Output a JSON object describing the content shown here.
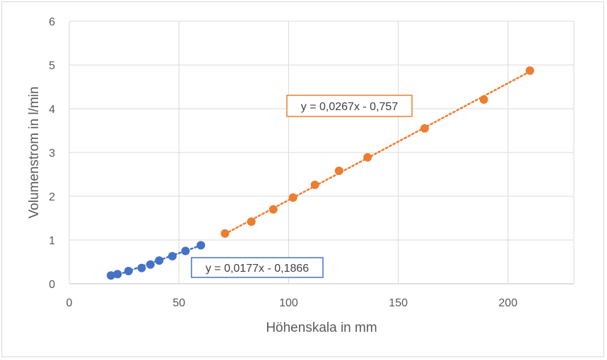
{
  "chart_data": {
    "type": "scatter",
    "title": "",
    "xlabel": "Höhenskala in mm",
    "ylabel": "Volumenstrom in l/min",
    "xlim": [
      0,
      230
    ],
    "ylim": [
      0,
      6
    ],
    "xticks": [
      0,
      50,
      100,
      150,
      200
    ],
    "yticks": [
      0,
      1,
      2,
      3,
      4,
      5,
      6
    ],
    "grid": true,
    "series": [
      {
        "color": "#4472c4",
        "points": [
          {
            "x": 19,
            "y": 0.19
          },
          {
            "x": 22,
            "y": 0.22
          },
          {
            "x": 27,
            "y": 0.29
          },
          {
            "x": 33,
            "y": 0.36
          },
          {
            "x": 37,
            "y": 0.44
          },
          {
            "x": 41,
            "y": 0.53
          },
          {
            "x": 47,
            "y": 0.63
          },
          {
            "x": 53,
            "y": 0.75
          },
          {
            "x": 60,
            "y": 0.88
          }
        ],
        "trendline": {
          "slope": 0.0177,
          "intercept": -0.1866,
          "x_range": [
            19,
            60
          ],
          "equation": "y = 0,0177x - 0,1866"
        }
      },
      {
        "color": "#ed7d31",
        "points": [
          {
            "x": 71,
            "y": 1.15
          },
          {
            "x": 83,
            "y": 1.42
          },
          {
            "x": 93,
            "y": 1.7
          },
          {
            "x": 102,
            "y": 1.97
          },
          {
            "x": 112,
            "y": 2.26
          },
          {
            "x": 123,
            "y": 2.58
          },
          {
            "x": 136,
            "y": 2.89
          },
          {
            "x": 162,
            "y": 3.55
          },
          {
            "x": 189,
            "y": 4.21
          },
          {
            "x": 210,
            "y": 4.87
          }
        ],
        "trendline": {
          "slope": 0.0267,
          "intercept": -0.757,
          "x_range": [
            71,
            210
          ],
          "equation": "y = 0,0267x - 0,757"
        }
      }
    ]
  }
}
